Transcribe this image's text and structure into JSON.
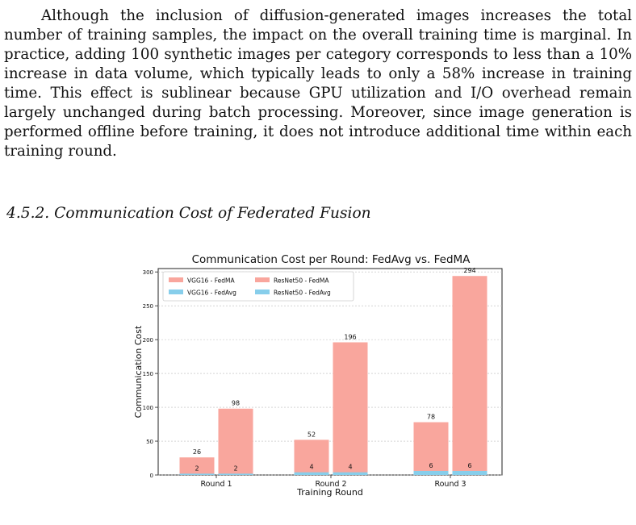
{
  "paragraph": "Although the inclusion of diffusion-generated images increases the total number of training samples, the impact on the overall training time is marginal. In practice, adding 100 synthetic images per category corresponds to less than a 10% increase in data volume, which typically leads to only a 58% increase in training time. This effect is sublinear because GPU utilization and I/O overhead remain largely unchanged during batch processing. Moreover, since image generation is performed offline before training, it does not introduce additional time within each training round.",
  "section_heading": "4.5.2. Communication Cost of Federated Fusion",
  "chart_data": {
    "type": "bar",
    "title": "Communication Cost per Round: FedAvg vs. FedMA",
    "xlabel": "Training Round",
    "ylabel": "Communication Cost",
    "categories": [
      "Round 1",
      "Round 2",
      "Round 3"
    ],
    "ylim": [
      0,
      305
    ],
    "yticks": [
      0,
      50,
      100,
      150,
      200,
      250,
      300
    ],
    "grid": "horizontal dotted",
    "legend_position": "top-left",
    "series": [
      {
        "name": "VGG16 - FedMA",
        "group": "VGG16",
        "values": [
          26,
          52,
          78
        ],
        "color": "#f9a69d"
      },
      {
        "name": "VGG16 - FedAvg",
        "group": "VGG16",
        "values": [
          2,
          4,
          6
        ],
        "color": "#87ceeb"
      },
      {
        "name": "ResNet50 - FedMA",
        "group": "ResNet50",
        "values": [
          98,
          196,
          294
        ],
        "color": "#f9a69d"
      },
      {
        "name": "ResNet50 - FedAvg",
        "group": "ResNet50",
        "values": [
          2,
          4,
          6
        ],
        "color": "#87ceeb"
      }
    ]
  }
}
